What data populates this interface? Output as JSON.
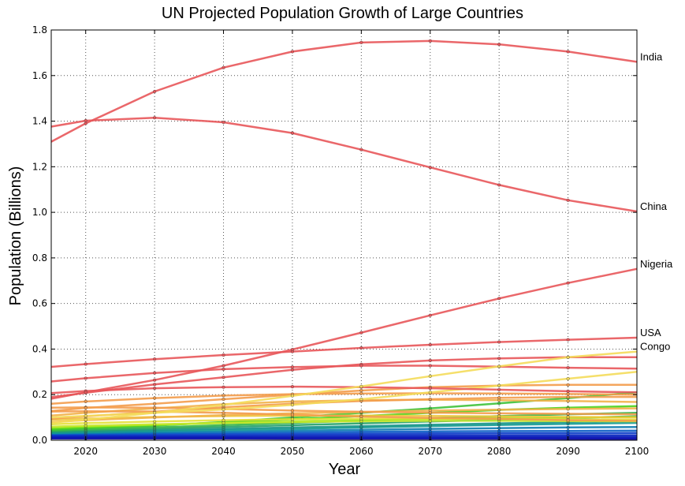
{
  "chart_data": {
    "type": "line",
    "title": "UN Projected Population Growth of Large Countries",
    "xlabel": "Year",
    "ylabel": "Population (Billions)",
    "xlim": [
      2015,
      2100
    ],
    "ylim": [
      0,
      1.8
    ],
    "xticks": [
      2020,
      2030,
      2040,
      2050,
      2060,
      2070,
      2080,
      2090,
      2100
    ],
    "yticks": [
      0.0,
      0.2,
      0.4,
      0.6,
      0.8,
      1.0,
      1.2,
      1.4,
      1.6,
      1.8
    ],
    "grid": true,
    "x": [
      2015,
      2020,
      2030,
      2040,
      2050,
      2060,
      2070,
      2080,
      2090,
      2100
    ],
    "series": [
      {
        "name": "India",
        "color": "#e8565a",
        "values": [
          1.31,
          1.39,
          1.53,
          1.635,
          1.705,
          1.745,
          1.752,
          1.737,
          1.705,
          1.66
        ]
      },
      {
        "name": "China",
        "color": "#e8565a",
        "values": [
          1.376,
          1.402,
          1.415,
          1.395,
          1.348,
          1.275,
          1.197,
          1.12,
          1.053,
          1.004
        ]
      },
      {
        "name": "Nigeria",
        "color": "#e8565a",
        "values": [
          0.182,
          0.21,
          0.264,
          0.327,
          0.398,
          0.472,
          0.548,
          0.622,
          0.69,
          0.752
        ]
      },
      {
        "name": "USA",
        "color": "#e8565a",
        "values": [
          0.322,
          0.334,
          0.356,
          0.374,
          0.389,
          0.405,
          0.419,
          0.431,
          0.441,
          0.45
        ]
      },
      {
        "name": "Congo",
        "color": "#f4dc5a",
        "values": [
          0.077,
          0.09,
          0.12,
          0.155,
          0.195,
          0.236,
          0.281,
          0.324,
          0.364,
          0.389
        ]
      },
      {
        "name": "",
        "color": "#e8565a",
        "values": [
          0.258,
          0.272,
          0.295,
          0.312,
          0.321,
          0.327,
          0.327,
          0.323,
          0.318,
          0.314
        ]
      },
      {
        "name": "",
        "color": "#e8565a",
        "values": [
          0.189,
          0.208,
          0.245,
          0.276,
          0.309,
          0.333,
          0.35,
          0.359,
          0.364,
          0.364
        ]
      },
      {
        "name": "",
        "color": "#e8565a",
        "values": [
          0.207,
          0.216,
          0.228,
          0.233,
          0.235,
          0.233,
          0.228,
          0.222,
          0.215,
          0.21
        ]
      },
      {
        "name": "",
        "color": "#f4dc5a",
        "values": [
          0.1,
          0.107,
          0.12,
          0.135,
          0.155,
          0.18,
          0.21,
          0.24,
          0.27,
          0.3
        ]
      },
      {
        "name": "",
        "color": "#f39c4b",
        "values": [
          0.16,
          0.17,
          0.185,
          0.196,
          0.202,
          0.205,
          0.206,
          0.205,
          0.203,
          0.2
        ]
      },
      {
        "name": "",
        "color": "#f39c4b",
        "values": [
          0.128,
          0.142,
          0.16,
          0.18,
          0.2,
          0.218,
          0.233,
          0.24,
          0.243,
          0.243
        ]
      },
      {
        "name": "",
        "color": "#f39c4b",
        "values": [
          0.126,
          0.127,
          0.126,
          0.12,
          0.112,
          0.104,
          0.098,
          0.094,
          0.088,
          0.085
        ]
      },
      {
        "name": "",
        "color": "#f39c4b",
        "values": [
          0.143,
          0.144,
          0.143,
          0.137,
          0.13,
          0.125,
          0.121,
          0.118,
          0.116,
          0.114
        ]
      },
      {
        "name": "",
        "color": "#f39c4b",
        "values": [
          0.094,
          0.105,
          0.125,
          0.145,
          0.16,
          0.172,
          0.18,
          0.186,
          0.19,
          0.19
        ]
      },
      {
        "name": "",
        "color": "#f2b24a",
        "values": [
          0.108,
          0.12,
          0.14,
          0.158,
          0.17,
          0.176,
          0.178,
          0.176,
          0.172,
          0.168
        ]
      },
      {
        "name": "",
        "color": "#f2b24a",
        "values": [
          0.08,
          0.088,
          0.1,
          0.11,
          0.118,
          0.124,
          0.13,
          0.134,
          0.137,
          0.14
        ]
      },
      {
        "name": "",
        "color": "#eec83c",
        "values": [
          0.09,
          0.095,
          0.102,
          0.106,
          0.108,
          0.108,
          0.107,
          0.105,
          0.102,
          0.1
        ]
      },
      {
        "name": "",
        "color": "#e4e03a",
        "values": [
          0.07,
          0.075,
          0.082,
          0.088,
          0.092,
          0.094,
          0.095,
          0.094,
          0.092,
          0.09
        ]
      },
      {
        "name": "",
        "color": "#c8e62e",
        "values": [
          0.06,
          0.064,
          0.07,
          0.076,
          0.08,
          0.083,
          0.085,
          0.085,
          0.084,
          0.083
        ]
      },
      {
        "name": "",
        "color": "#8ee81c",
        "values": [
          0.055,
          0.06,
          0.068,
          0.075,
          0.082,
          0.088,
          0.093,
          0.097,
          0.1,
          0.102
        ]
      },
      {
        "name": "",
        "color": "#4cd31c",
        "values": [
          0.05,
          0.056,
          0.066,
          0.078,
          0.092,
          0.106,
          0.12,
          0.133,
          0.143,
          0.15
        ]
      },
      {
        "name": "",
        "color": "#3fc23a",
        "values": [
          0.045,
          0.052,
          0.064,
          0.08,
          0.1,
          0.12,
          0.14,
          0.162,
          0.185,
          0.21
        ]
      },
      {
        "name": "",
        "color": "#34b24a",
        "values": [
          0.042,
          0.047,
          0.056,
          0.066,
          0.076,
          0.086,
          0.096,
          0.106,
          0.114,
          0.12
        ]
      },
      {
        "name": "",
        "color": "#22a06a",
        "values": [
          0.038,
          0.042,
          0.05,
          0.058,
          0.066,
          0.074,
          0.082,
          0.09,
          0.098,
          0.105
        ]
      },
      {
        "name": "",
        "color": "#18968a",
        "values": [
          0.035,
          0.038,
          0.044,
          0.05,
          0.056,
          0.062,
          0.068,
          0.074,
          0.08,
          0.085
        ]
      },
      {
        "name": "",
        "color": "#139a94",
        "values": [
          0.032,
          0.035,
          0.04,
          0.045,
          0.05,
          0.056,
          0.062,
          0.067,
          0.072,
          0.076
        ]
      },
      {
        "name": "",
        "color": "#0c7cb0",
        "values": [
          0.03,
          0.032,
          0.035,
          0.038,
          0.042,
          0.046,
          0.05,
          0.053,
          0.056,
          0.058
        ]
      },
      {
        "name": "",
        "color": "#0a5cc4",
        "values": [
          0.028,
          0.029,
          0.031,
          0.033,
          0.035,
          0.037,
          0.039,
          0.04,
          0.041,
          0.042
        ]
      },
      {
        "name": "",
        "color": "#0a3cc8",
        "values": [
          0.024,
          0.025,
          0.026,
          0.027,
          0.028,
          0.029,
          0.03,
          0.031,
          0.031,
          0.032
        ]
      },
      {
        "name": "",
        "color": "#0a28c0",
        "values": [
          0.02,
          0.02,
          0.021,
          0.021,
          0.022,
          0.022,
          0.022,
          0.022,
          0.022,
          0.022
        ]
      },
      {
        "name": "",
        "color": "#0a1cb8",
        "values": [
          0.016,
          0.016,
          0.016,
          0.016,
          0.016,
          0.016,
          0.016,
          0.016,
          0.016,
          0.016
        ]
      },
      {
        "name": "",
        "color": "#0a10b0",
        "values": [
          0.012,
          0.012,
          0.012,
          0.012,
          0.011,
          0.011,
          0.011,
          0.011,
          0.011,
          0.01
        ]
      },
      {
        "name": "",
        "color": "#0a08a8",
        "values": [
          0.008,
          0.008,
          0.008,
          0.008,
          0.007,
          0.007,
          0.007,
          0.007,
          0.006,
          0.006
        ]
      }
    ]
  }
}
